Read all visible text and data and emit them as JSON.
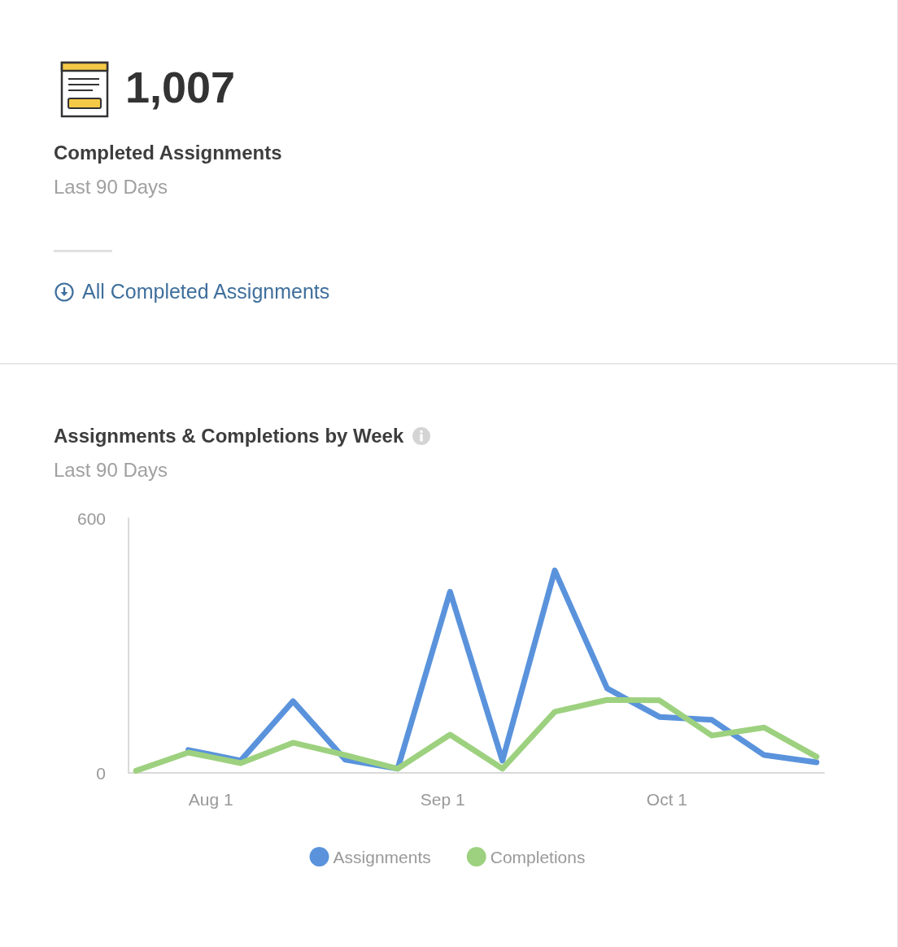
{
  "chart_data": [
    {
      "type": "other",
      "title": "Completed Assignments",
      "subtitle": "Last 90 Days",
      "annotations": [
        "1,007",
        "All Completed Assignments"
      ]
    },
    {
      "type": "line",
      "title": "Assignments & Completions by Week",
      "subtitle": "Last 90 Days",
      "x": [
        "--07-22",
        "--07-29",
        "--08-05",
        "--08-12",
        "--08-19",
        "--08-26",
        "--09-02",
        "--09-09",
        "--09-16",
        "--09-23",
        "--09-30",
        "--10-07",
        "--10-14",
        "--10-21"
      ],
      "series": [
        {
          "name": "Assignments",
          "color": "#5a93dc",
          "values": [
            null,
            54,
            29,
            169,
            31,
            10,
            427,
            29,
            477,
            199,
            132,
            125,
            42,
            25
          ]
        },
        {
          "name": "Completions",
          "color": "#9dd17f",
          "values": [
            5,
            48,
            23,
            71,
            42,
            10,
            90,
            10,
            144,
            172,
            171,
            88,
            107,
            38
          ]
        }
      ],
      "xlim": [
        "--07-21",
        "--10-22"
      ],
      "xticks": [
        {
          "value": "--08-01",
          "label": "Aug 1"
        },
        {
          "value": "--09-01",
          "label": "Sep 1"
        },
        {
          "value": "--10-01",
          "label": "Oct 1"
        }
      ],
      "ylim": [
        0,
        600
      ],
      "yticks": [
        0,
        600
      ],
      "grid": false,
      "legend": "bottom",
      "marker": "none",
      "line_style": "solid"
    }
  ]
}
